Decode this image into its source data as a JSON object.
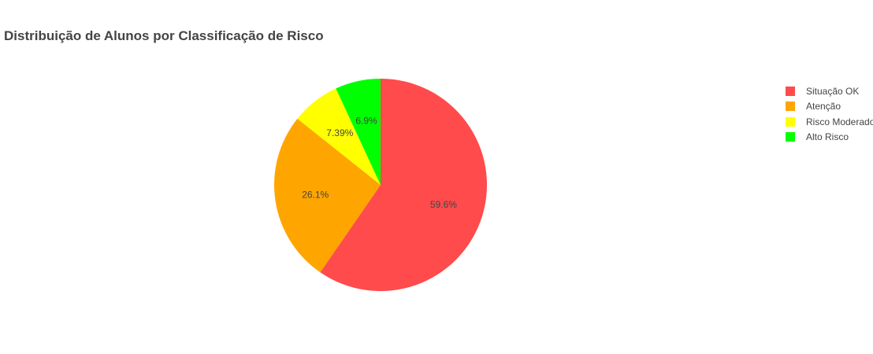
{
  "chart_data": {
    "type": "pie",
    "title": "Distribuição de Alunos por Classificação de Risco",
    "labels": [
      "Situação OK",
      "Atenção",
      "Risco Moderado",
      "Alto Risco"
    ],
    "values": [
      59.6,
      26.1,
      7.39,
      6.9
    ],
    "value_labels": [
      "59.6%",
      "26.1%",
      "7.39%",
      "6.9%"
    ],
    "colors": [
      "#FF4B4B",
      "#FFA500",
      "#FFFF00",
      "#00FF00"
    ],
    "direction": "clockwise",
    "start_angle": "top",
    "legend_position": "right"
  }
}
